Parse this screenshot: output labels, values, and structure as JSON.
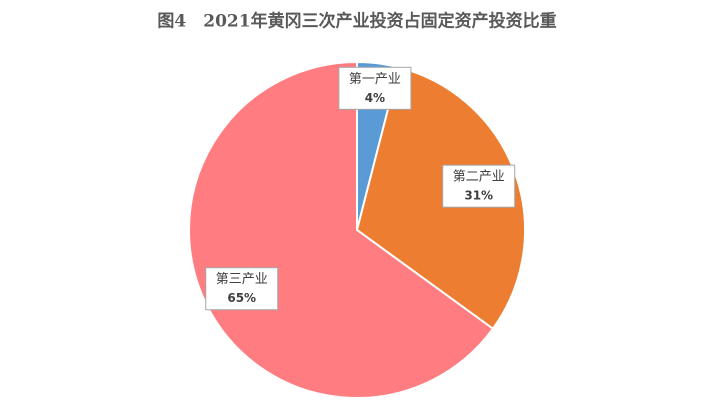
{
  "chart_data": {
    "type": "pie",
    "title": "图4　2021年黄冈三次产业投资占固定资产投资比重",
    "categories": [
      "第一产业",
      "第二产业",
      "第三产业"
    ],
    "values": [
      4,
      31,
      65
    ],
    "value_labels": [
      "4%",
      "31%",
      "65%"
    ],
    "colors": [
      "#5b9bd5",
      "#ed7d31",
      "#ff7c80"
    ]
  }
}
